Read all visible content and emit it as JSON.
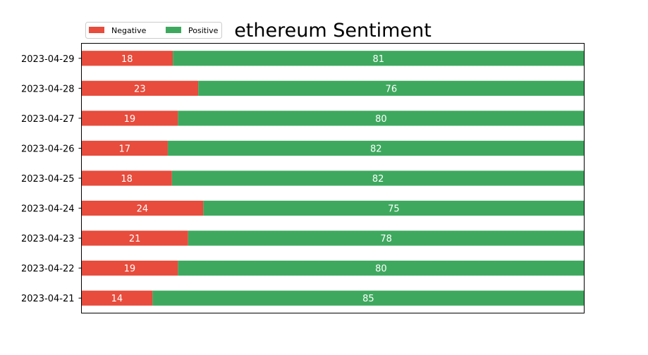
{
  "chart_data": {
    "type": "bar",
    "orientation": "horizontal",
    "stacked": true,
    "title": "ethereum Sentiment",
    "categories": [
      "2023-04-29",
      "2023-04-28",
      "2023-04-27",
      "2023-04-26",
      "2023-04-25",
      "2023-04-24",
      "2023-04-23",
      "2023-04-22",
      "2023-04-21"
    ],
    "series": [
      {
        "name": "Negative",
        "color": "#e74c3c",
        "values": [
          18,
          23,
          19,
          17,
          18,
          24,
          21,
          19,
          14
        ]
      },
      {
        "name": "Positive",
        "color": "#3ea95e",
        "values": [
          81,
          76,
          80,
          82,
          82,
          75,
          78,
          80,
          85
        ]
      }
    ],
    "value_axis_visible": false,
    "grid": false,
    "legend_position": "top-left, outside"
  }
}
